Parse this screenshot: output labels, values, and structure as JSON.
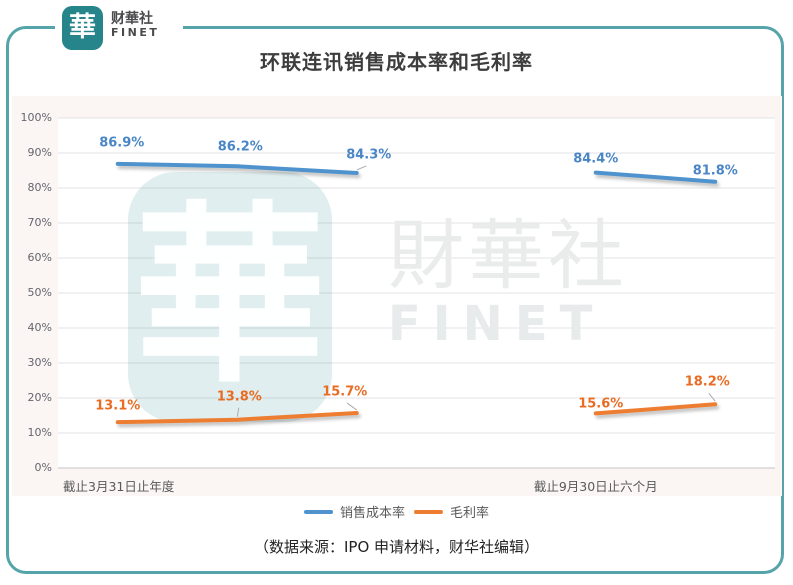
{
  "page": {
    "title": "环联连讯销售成本率和毛利率",
    "source_note": "（数据来源：IPO 申请材料，财华社编辑）"
  },
  "logo": {
    "glyph": "華",
    "name_cn": "财華社",
    "name_en": "FINET"
  },
  "watermark": {
    "tile_glyph": "華",
    "text_cn": "財華社",
    "text_en": "FINET"
  },
  "colors": {
    "frame": "#55a4a9",
    "logo_tile": "#26858b",
    "cost_line": "#4f93ce",
    "cost_label": "#4a86c6",
    "margin_line": "#ed7d31",
    "margin_label": "#e86c24"
  },
  "chart_data": {
    "type": "line",
    "title": "环联连讯销售成本率和毛利率",
    "grid": true,
    "legend_position": "bottom",
    "y_axis": {
      "min": 0,
      "max": 100,
      "tick_step": 10,
      "tick_labels": [
        "0%",
        "10%",
        "20%",
        "30%",
        "40%",
        "50%",
        "60%",
        "70%",
        "80%",
        "90%",
        "100%"
      ]
    },
    "slot_count": 6,
    "x_groups": [
      {
        "label": "截止3月31日止年度",
        "slots": [
          0,
          1,
          2
        ],
        "anchor": "left"
      },
      {
        "label": "截止9月30日止六个月",
        "slots": [
          4,
          5
        ],
        "anchor": "slot",
        "anchor_slot": 4
      }
    ],
    "series": [
      {
        "name": "销售成本率",
        "color": "#4f93ce",
        "label_color": "#4a86c6",
        "segments": [
          [
            {
              "slot": 0,
              "value": 86.9,
              "label": "86.9%",
              "dx": 4,
              "dy": -21,
              "leader": false
            },
            {
              "slot": 1,
              "value": 86.2,
              "label": "86.2%",
              "dx": 3,
              "dy": -19,
              "leader": false
            },
            {
              "slot": 2,
              "value": 84.3,
              "label": "84.3%",
              "dx": 12,
              "dy": -18,
              "leader": true
            }
          ],
          [
            {
              "slot": 4,
              "value": 84.4,
              "label": "84.4%",
              "dx": 0,
              "dy": -14,
              "leader": false
            },
            {
              "slot": 5,
              "value": 81.8,
              "label": "81.8%",
              "dx": 0,
              "dy": -11,
              "leader": false
            }
          ]
        ]
      },
      {
        "name": "毛利率",
        "color": "#ed7d31",
        "label_color": "#e86c24",
        "segments": [
          [
            {
              "slot": 0,
              "value": 13.1,
              "label": "13.1%",
              "dx": 0,
              "dy": -16,
              "leader": false
            },
            {
              "slot": 1,
              "value": 13.8,
              "label": "13.8%",
              "dx": 2,
              "dy": -23,
              "leader": true
            },
            {
              "slot": 2,
              "value": 15.7,
              "label": "15.7%",
              "dx": -12,
              "dy": -21,
              "leader": true
            }
          ],
          [
            {
              "slot": 4,
              "value": 15.6,
              "label": "15.6%",
              "dx": 5,
              "dy": -9,
              "leader": false
            },
            {
              "slot": 5,
              "value": 18.2,
              "label": "18.2%",
              "dx": -8,
              "dy": -22,
              "leader": true
            }
          ]
        ]
      }
    ]
  }
}
